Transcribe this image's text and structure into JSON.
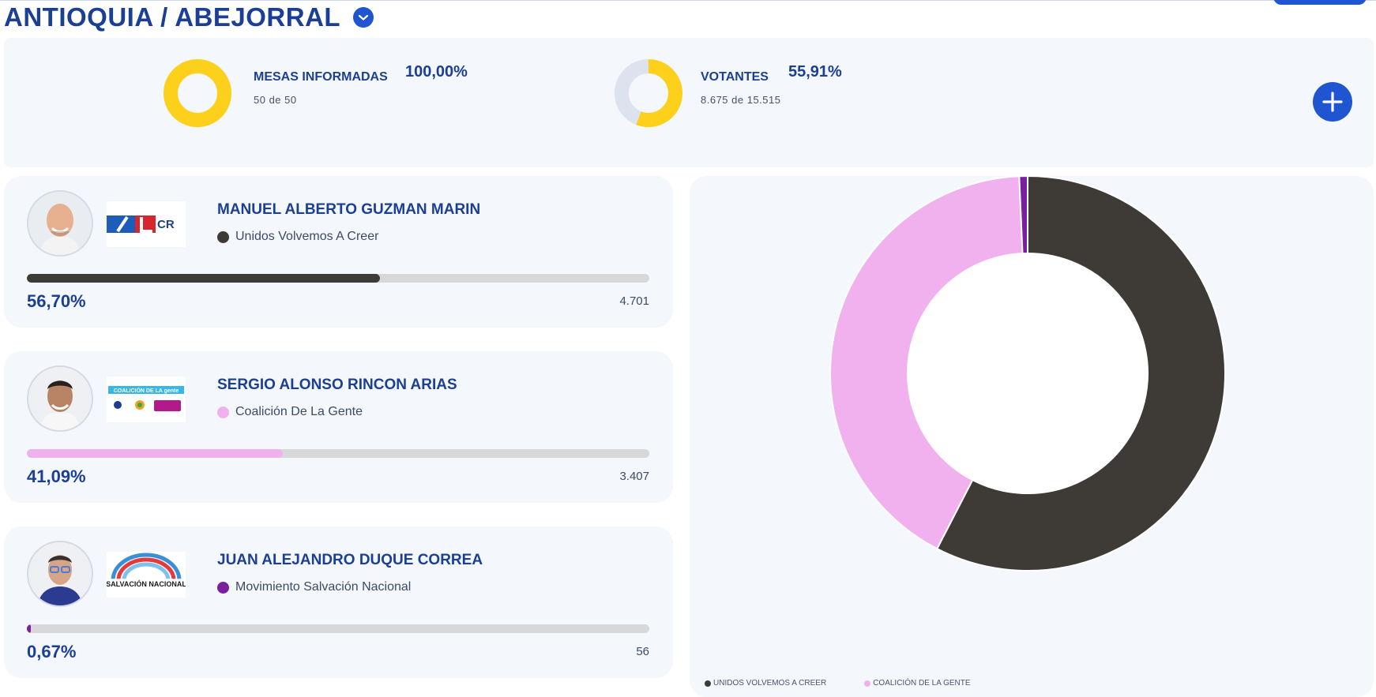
{
  "header": {
    "title": "ANTIOQUIA / ABEJORRAL"
  },
  "summary": {
    "mesas": {
      "label": "MESAS INFORMADAS",
      "percent": "100,00%",
      "detail": "50  de  50",
      "fraction": 1.0
    },
    "votantes": {
      "label": "VOTANTES",
      "percent": "55,91%",
      "detail": "8.675  de  15.515",
      "fraction": 0.5591
    },
    "ring_color": "#fdd11b",
    "ring_track_color": "#dde3ee"
  },
  "candidates": [
    {
      "name": "MANUEL ALBERTO GUZMAN MARIN",
      "party": "Unidos Volvemos A Creer",
      "percent": "56,70%",
      "fraction": 0.567,
      "votes": "4.701",
      "color": "#3e3b37",
      "logo_text": "CR"
    },
    {
      "name": "SERGIO ALONSO RINCON ARIAS",
      "party": "Coalición De La Gente",
      "percent": "41,09%",
      "fraction": 0.4109,
      "votes": "3.407",
      "color": "#f1b1ef",
      "logo_text": "COALICIÓN DE LA gente"
    },
    {
      "name": "JUAN ALEJANDRO DUQUE CORREA",
      "party": "Movimiento Salvación Nacional",
      "percent": "0,67%",
      "fraction": 0.0067,
      "votes": "56",
      "color": "#7a1f9e",
      "logo_text": "SALVACIÓN NACIONAL"
    }
  ],
  "chart_data": {
    "type": "pie",
    "categories": [
      "Unidos Volvemos A Creer",
      "Coalición De La Gente",
      "Movimiento Salvación Nacional"
    ],
    "values": [
      56.7,
      41.09,
      0.67
    ],
    "colors": [
      "#3e3b37",
      "#f1b1ef",
      "#7a1f9e"
    ],
    "legend": [
      "UNIDOS VOLVEMOS A CREER",
      "COALICIÓN DE LA GENTE"
    ],
    "legend_colors": [
      "#3e3b37",
      "#f1b1ef"
    ]
  }
}
